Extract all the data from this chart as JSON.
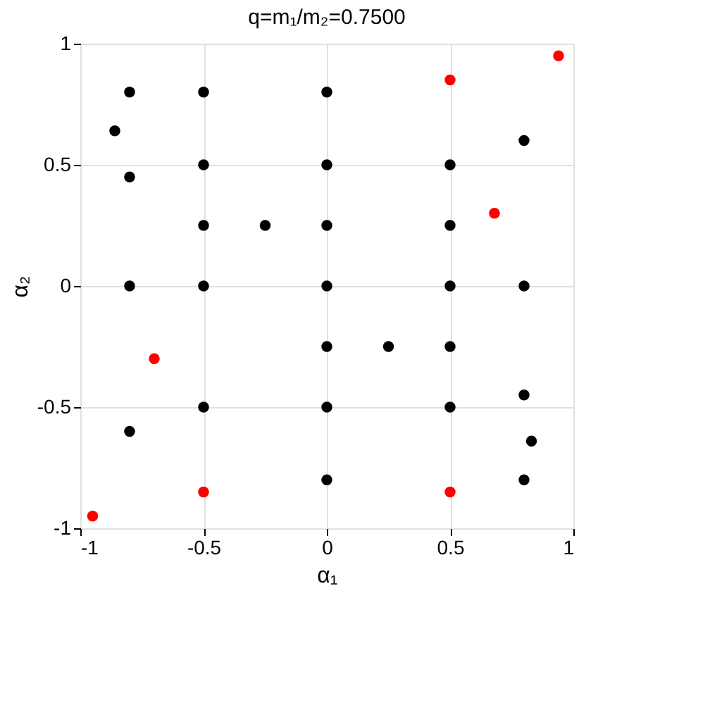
{
  "chart_data": {
    "type": "scatter",
    "title": "q=m₁/m₂=0.7500",
    "xlabel": "α₁",
    "ylabel": "α₂",
    "xlim": [
      -1,
      1
    ],
    "ylim": [
      -1,
      1
    ],
    "xticks": [
      -1,
      -0.5,
      0,
      0.5,
      1
    ],
    "yticks": [
      -1,
      -0.5,
      0,
      0.5,
      1
    ],
    "grid": true,
    "marker": "circle",
    "series": [
      {
        "color": "#000000",
        "x": [
          -0.8,
          -0.86,
          -0.8,
          -0.8,
          -0.8,
          -0.5,
          -0.5,
          -0.5,
          -0.5,
          -0.5,
          -0.25,
          0,
          0,
          0,
          0,
          0,
          0,
          0,
          0.25,
          0.5,
          0.5,
          0.5,
          0.5,
          0.5,
          0.8,
          0.8,
          0.8,
          0.83,
          0.8
        ],
        "values": [
          0.8,
          0.64,
          0.45,
          0,
          -0.6,
          0.8,
          0.5,
          0.25,
          0,
          -0.5,
          0.25,
          0.8,
          0.5,
          0.25,
          0,
          -0.25,
          -0.5,
          -0.8,
          -0.25,
          0.5,
          0.25,
          0,
          -0.25,
          -0.5,
          0.6,
          0,
          -0.45,
          -0.64,
          -0.8
        ]
      },
      {
        "color": "#ff0000",
        "x": [
          0.5,
          0.94,
          0.68,
          -0.7,
          -0.5,
          0.5,
          -0.95
        ],
        "values": [
          0.85,
          0.95,
          0.3,
          -0.3,
          -0.85,
          -0.85,
          -0.95
        ]
      }
    ]
  }
}
